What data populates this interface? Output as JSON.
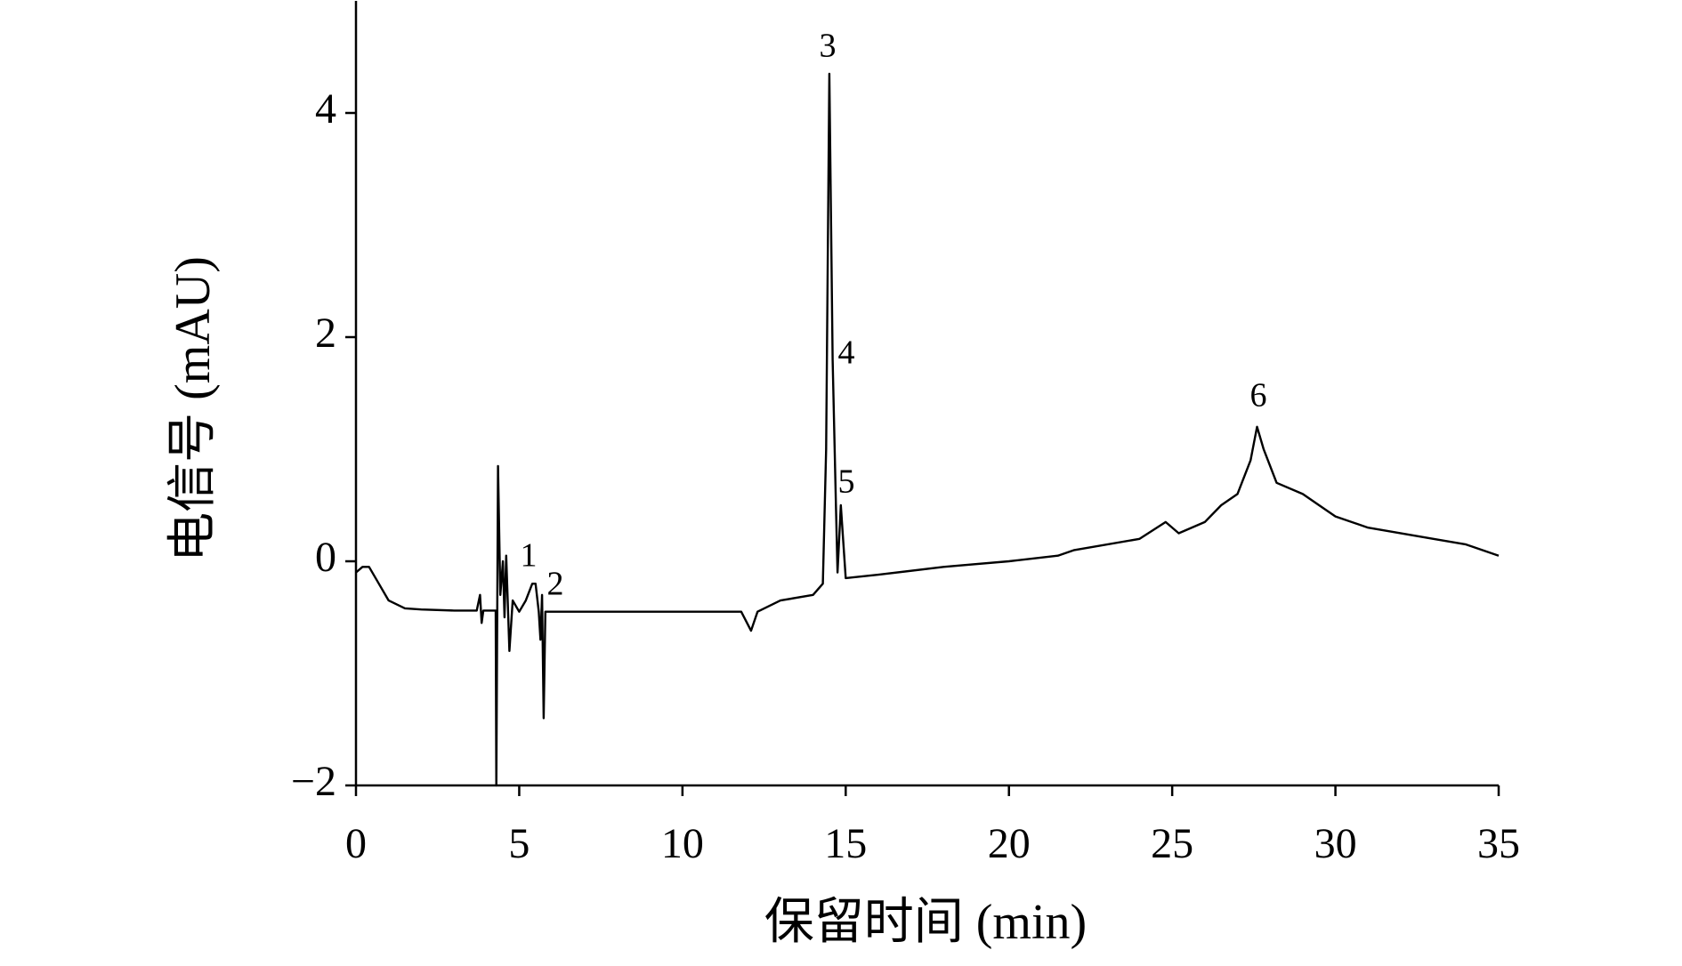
{
  "chart_data": {
    "type": "line",
    "xlabel": "保留时间 (min)",
    "ylabel": "电信号 (mAU)",
    "x": [
      0,
      0.2,
      0.4,
      0.7,
      1,
      1.5,
      2,
      3,
      3.7,
      3.8,
      3.85,
      3.9,
      4.2,
      4.28,
      4.3,
      4.35,
      4.42,
      4.5,
      4.55,
      4.6,
      4.7,
      4.8,
      5.0,
      5.2,
      5.4,
      5.5,
      5.6,
      5.65,
      5.7,
      5.75,
      5.8,
      6,
      8,
      10,
      11.8,
      12.1,
      12.3,
      13,
      14,
      14.3,
      14.4,
      14.5,
      14.6,
      14.7,
      14.75,
      14.85,
      15,
      16,
      18,
      20,
      21.5,
      22,
      24,
      24.8,
      25.2,
      26,
      26.5,
      27,
      27.4,
      27.6,
      27.8,
      28.2,
      29,
      29.5,
      30,
      31,
      33,
      34,
      35
    ],
    "values": [
      -0.1,
      -0.05,
      -0.05,
      -0.2,
      -0.35,
      -0.42,
      -0.43,
      -0.44,
      -0.44,
      -0.3,
      -0.55,
      -0.44,
      -0.44,
      -0.44,
      -2,
      0.85,
      -0.3,
      0.0,
      -0.5,
      0.05,
      -0.8,
      -0.35,
      -0.45,
      -0.35,
      -0.2,
      -0.2,
      -0.45,
      -0.7,
      -0.3,
      -1.4,
      -0.45,
      -0.45,
      -0.45,
      -0.45,
      -0.45,
      -0.62,
      -0.45,
      -0.35,
      -0.3,
      -0.2,
      1.0,
      4.35,
      1.8,
      0.5,
      -0.1,
      0.5,
      -0.15,
      -0.12,
      -0.05,
      0.0,
      0.05,
      0.1,
      0.2,
      0.35,
      0.25,
      0.35,
      0.5,
      0.6,
      0.9,
      1.2,
      1.0,
      0.7,
      0.6,
      0.5,
      0.4,
      0.3,
      0.2,
      0.15,
      0.05
    ],
    "color": "#000000",
    "annotations": [
      "1",
      "2",
      "3",
      "4",
      "5",
      "6"
    ],
    "xlim": [
      0,
      35
    ],
    "xticks": [
      0,
      5,
      10,
      15,
      20,
      25,
      30,
      35
    ],
    "ylim": [
      -2,
      5
    ],
    "yticks": [
      {
        "value": -2,
        "label": "−2"
      },
      0,
      2,
      4
    ]
  }
}
